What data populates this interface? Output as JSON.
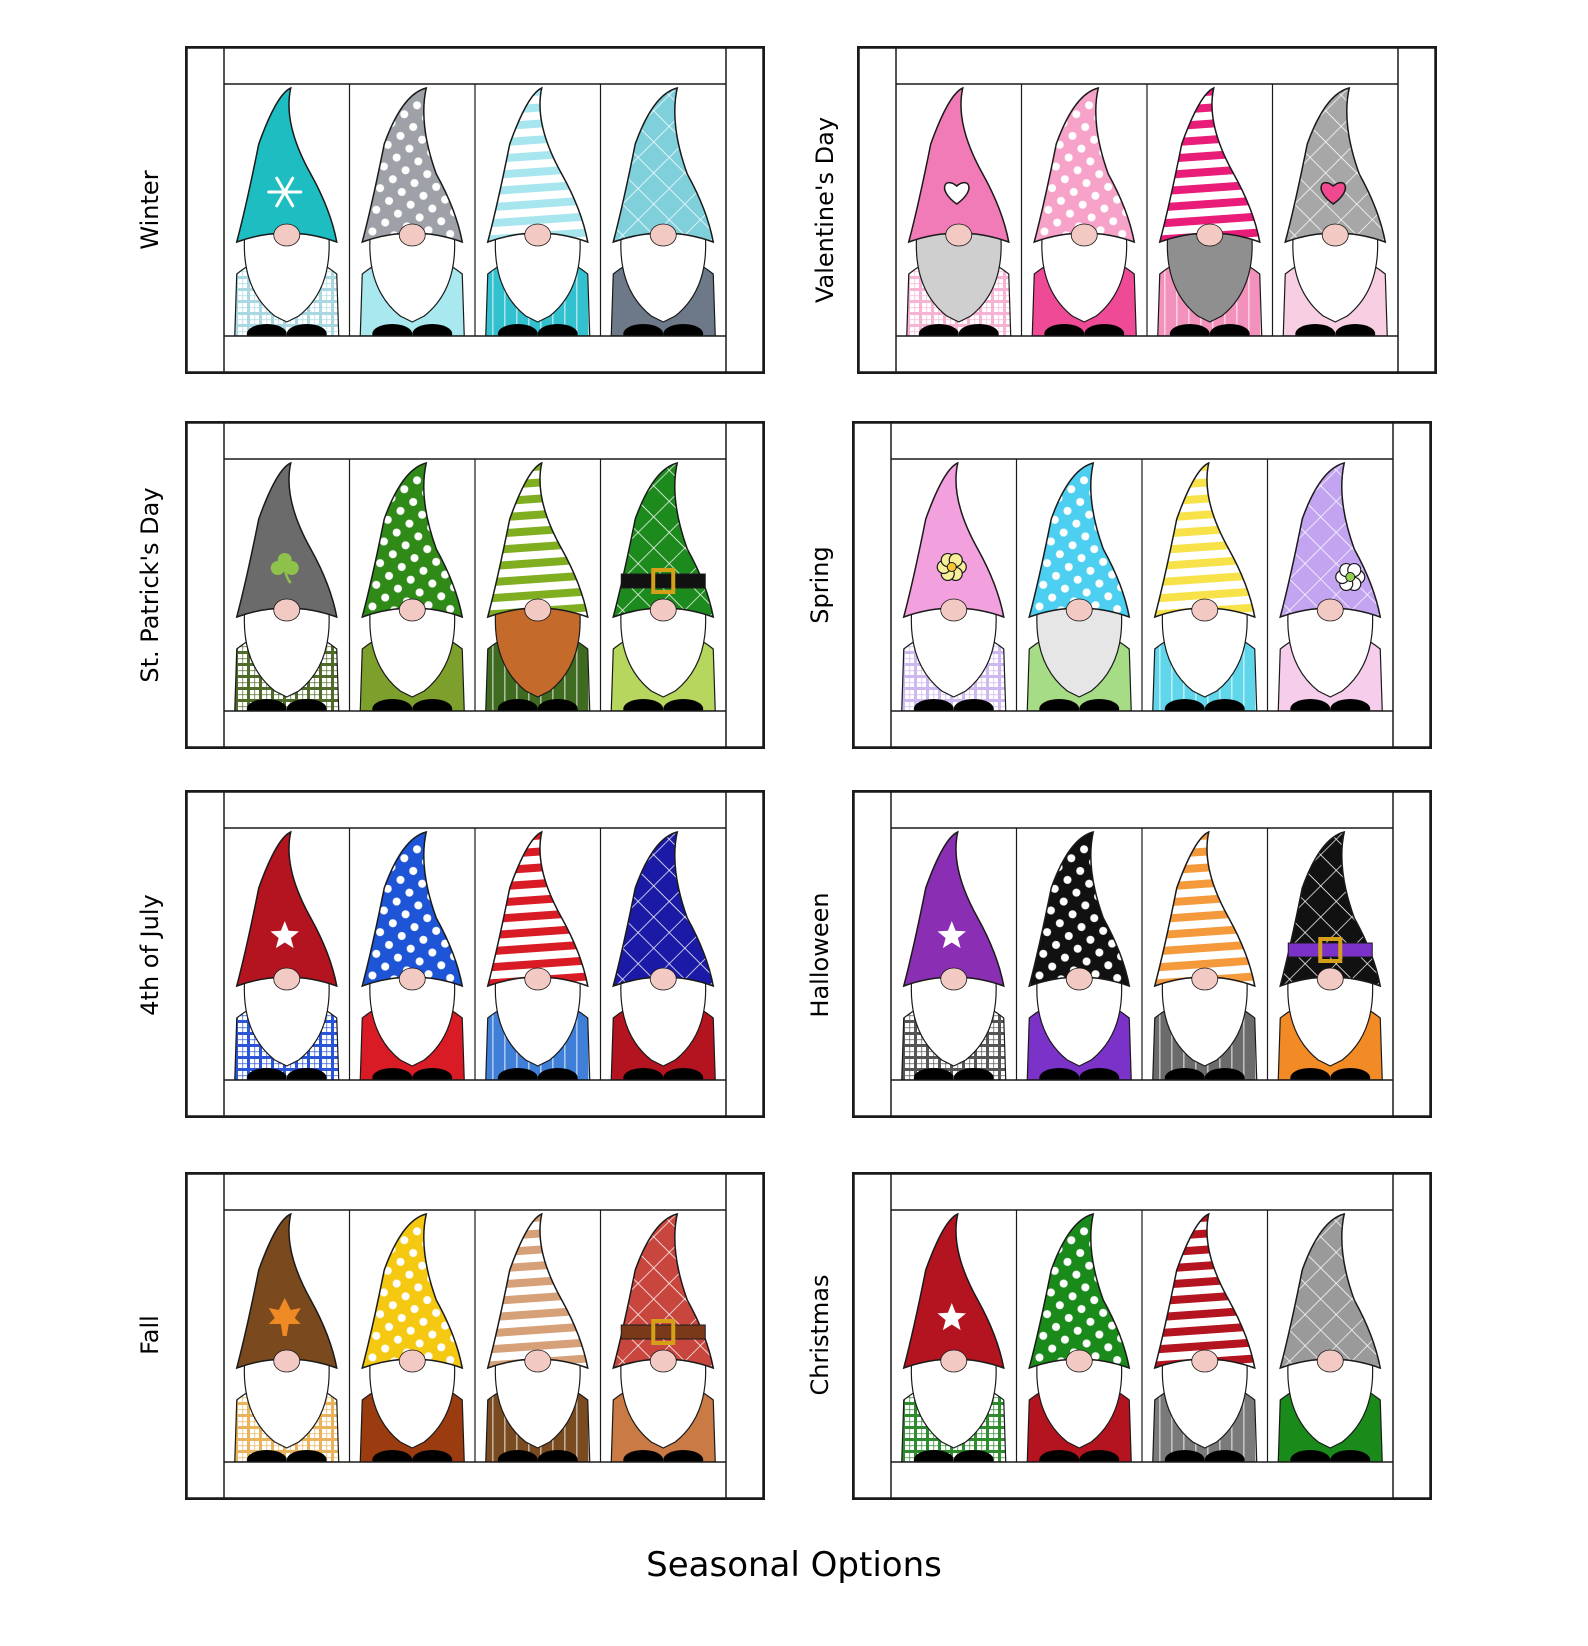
{
  "page_title": "Seasonal Options",
  "colors": {
    "frame_line": "#1a1a1a",
    "background": "#ffffff",
    "beard": "#ffffff",
    "nose": "#f2c9c3",
    "boots": "#000000"
  },
  "seasons": [
    {
      "key": "winter",
      "label": "Winter",
      "gnomes": [
        {
          "hat": "#1dbdc2",
          "pattern": "solid",
          "motif": "snowflake-icon",
          "beard": "#ffffff",
          "body": "#a9d8e2",
          "body_pattern": "plaid"
        },
        {
          "hat": "#9ea2a8",
          "pattern": "dots",
          "motif": "",
          "beard": "#ffffff",
          "body": "#a8e8ee",
          "body_pattern": "solid"
        },
        {
          "hat": "#a8e6ef",
          "pattern": "stripes",
          "motif": "",
          "beard": "#ffffff",
          "body": "#33c1cf",
          "body_pattern": "pinstripe"
        },
        {
          "hat": "#7fd0db",
          "pattern": "argyle",
          "motif": "",
          "beard": "#ffffff",
          "body": "#6d7888",
          "body_pattern": "solid"
        }
      ]
    },
    {
      "key": "valentines",
      "label": "Valentine's Day",
      "gnomes": [
        {
          "hat": "#f07bb6",
          "pattern": "solid",
          "motif": "heart-icon",
          "motif_color": "#ffffff",
          "beard": "#cfcfcf",
          "body": "#f7b3d3",
          "body_pattern": "plaid"
        },
        {
          "hat": "#f6a2c9",
          "pattern": "dots",
          "motif": "",
          "beard": "#ffffff",
          "body": "#ee4a95",
          "body_pattern": "solid"
        },
        {
          "hat": "#ea1c7a",
          "pattern": "stripes",
          "motif": "",
          "beard": "#8f8f8f",
          "body": "#f391bd",
          "body_pattern": "pinstripe"
        },
        {
          "hat": "#a7a7a7",
          "pattern": "argyle",
          "motif": "heart-icon",
          "motif_color": "#f0498f",
          "beard": "#ffffff",
          "body": "#f8cfe2",
          "body_pattern": "solid"
        }
      ]
    },
    {
      "key": "st-patricks",
      "label": "St. Patrick's Day",
      "gnomes": [
        {
          "hat": "#6b6b6b",
          "pattern": "solid",
          "motif": "shamrock-icon",
          "beard": "#ffffff",
          "body": "#4f6b2a",
          "body_pattern": "plaid"
        },
        {
          "hat": "#2f8a18",
          "pattern": "dots",
          "motif": "",
          "beard": "#ffffff",
          "body": "#7da02c",
          "body_pattern": "solid"
        },
        {
          "hat": "#7fae21",
          "pattern": "stripes",
          "motif": "",
          "beard": "#c46a2a",
          "body": "#3e6b20",
          "body_pattern": "pinstripe"
        },
        {
          "hat": "#1d8a1d",
          "pattern": "argyle",
          "motif": "buckle-band",
          "band_color": "#111111",
          "beard": "#ffffff",
          "body": "#b6d65e",
          "body_pattern": "solid"
        }
      ]
    },
    {
      "key": "spring",
      "label": "Spring",
      "gnomes": [
        {
          "hat": "#f3a0df",
          "pattern": "solid",
          "motif": "flower-icon",
          "beard": "#ffffff",
          "body": "#cdb8f0",
          "body_pattern": "plaid"
        },
        {
          "hat": "#4ccff0",
          "pattern": "dots",
          "motif": "",
          "beard": "#e6e6e6",
          "body": "#a7dc86",
          "body_pattern": "solid"
        },
        {
          "hat": "#f7e24a",
          "pattern": "stripes",
          "motif": "",
          "beard": "#ffffff",
          "body": "#5fd6ea",
          "body_pattern": "pinstripe"
        },
        {
          "hat": "#c2a4f0",
          "pattern": "argyle",
          "motif": "flower-icon",
          "beard": "#ffffff",
          "body": "#f6cdea",
          "body_pattern": "solid"
        }
      ]
    },
    {
      "key": "july4",
      "label": "4th of July",
      "gnomes": [
        {
          "hat": "#b3141f",
          "pattern": "solid",
          "motif": "star-icon",
          "beard": "#ffffff",
          "body": "#2a55d6",
          "body_pattern": "plaid"
        },
        {
          "hat": "#1e55d6",
          "pattern": "dots",
          "motif": "",
          "beard": "#ffffff",
          "body": "#d81b25",
          "body_pattern": "solid"
        },
        {
          "hat": "#d81b25",
          "pattern": "stripes",
          "motif": "",
          "beard": "#ffffff",
          "body": "#3f7fd8",
          "body_pattern": "pinstripe"
        },
        {
          "hat": "#1a1aa6",
          "pattern": "argyle",
          "motif": "",
          "beard": "#ffffff",
          "body": "#b3141f",
          "body_pattern": "solid"
        }
      ]
    },
    {
      "key": "halloween",
      "label": "Halloween",
      "gnomes": [
        {
          "hat": "#8a2fb3",
          "pattern": "solid",
          "motif": "star-icon",
          "beard": "#ffffff",
          "body": "#555555",
          "body_pattern": "plaid"
        },
        {
          "hat": "#111111",
          "pattern": "dots",
          "motif": "",
          "beard": "#ffffff",
          "body": "#7a32c8",
          "body_pattern": "solid"
        },
        {
          "hat": "#f59a3c",
          "pattern": "stripes",
          "motif": "",
          "beard": "#ffffff",
          "body": "#6b6b6b",
          "body_pattern": "pinstripe"
        },
        {
          "hat": "#111111",
          "pattern": "argyle",
          "motif": "buckle-band",
          "band_color": "#7a32c8",
          "beard": "#ffffff",
          "body": "#f28a25",
          "body_pattern": "solid"
        }
      ]
    },
    {
      "key": "fall",
      "label": "Fall",
      "gnomes": [
        {
          "hat": "#7a4a1e",
          "pattern": "solid",
          "motif": "leaf-icon",
          "beard": "#ffffff",
          "body": "#e8b35a",
          "body_pattern": "plaid"
        },
        {
          "hat": "#f5c912",
          "pattern": "dots",
          "motif": "",
          "beard": "#ffffff",
          "body": "#9a3b10",
          "body_pattern": "solid"
        },
        {
          "hat": "#d6a078",
          "pattern": "stripes",
          "motif": "",
          "beard": "#ffffff",
          "body": "#7a4a20",
          "body_pattern": "pinstripe"
        },
        {
          "hat": "#c8463e",
          "pattern": "argyle",
          "motif": "buckle-band",
          "band_color": "#7a3a1a",
          "beard": "#ffffff",
          "body": "#c97a45",
          "body_pattern": "solid"
        }
      ]
    },
    {
      "key": "christmas",
      "label": "Christmas",
      "gnomes": [
        {
          "hat": "#b3141f",
          "pattern": "solid",
          "motif": "star-icon",
          "beard": "#ffffff",
          "body": "#2e8b2e",
          "body_pattern": "plaid"
        },
        {
          "hat": "#1a8a1a",
          "pattern": "dots",
          "motif": "",
          "beard": "#ffffff",
          "body": "#b3141f",
          "body_pattern": "solid"
        },
        {
          "hat": "#b3141f",
          "pattern": "stripes",
          "motif": "",
          "beard": "#ffffff",
          "body": "#7a7a7a",
          "body_pattern": "pinstripe"
        },
        {
          "hat": "#9a9a9a",
          "pattern": "argyle",
          "motif": "",
          "beard": "#ffffff",
          "body": "#1a8a1a",
          "body_pattern": "solid"
        }
      ]
    }
  ]
}
